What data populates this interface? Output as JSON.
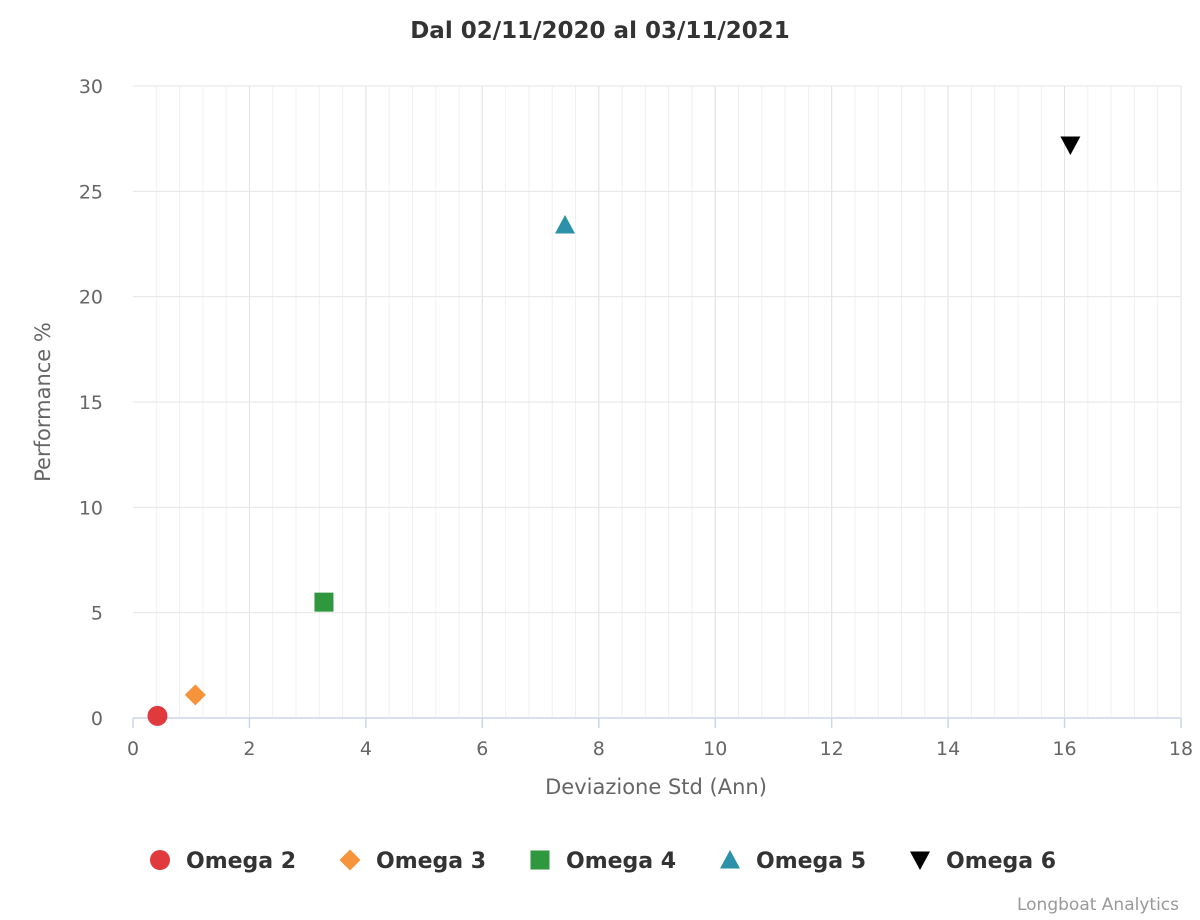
{
  "chart_data": {
    "type": "scatter",
    "title": "Dal 02/11/2020 al 03/11/2021",
    "xlabel": "Deviazione Std (Ann)",
    "ylabel": "Performance %",
    "xlim": [
      0,
      18
    ],
    "ylim": [
      0,
      30
    ],
    "x_ticks": [
      0,
      2,
      4,
      6,
      8,
      10,
      12,
      14,
      16,
      18
    ],
    "y_ticks": [
      0,
      5,
      10,
      15,
      20,
      25,
      30
    ],
    "x_minor_step": 0.4,
    "grid": true,
    "legend_position": "bottom",
    "series": [
      {
        "name": "Omega 2",
        "marker": "circle",
        "color": "#e0393e",
        "points": [
          {
            "x": 0.42,
            "y": 0.1
          }
        ]
      },
      {
        "name": "Omega 3",
        "marker": "diamond",
        "color": "#f7943b",
        "points": [
          {
            "x": 1.07,
            "y": 1.1
          }
        ]
      },
      {
        "name": "Omega 4",
        "marker": "square",
        "color": "#2f973e",
        "points": [
          {
            "x": 3.28,
            "y": 5.5
          }
        ]
      },
      {
        "name": "Omega 5",
        "marker": "triangle",
        "color": "#2b92aa",
        "points": [
          {
            "x": 7.42,
            "y": 23.4
          }
        ]
      },
      {
        "name": "Omega 6",
        "marker": "triangle-down",
        "color": "#000000",
        "points": [
          {
            "x": 16.1,
            "y": 27.2
          }
        ]
      }
    ]
  },
  "credits": "Longboat Analytics"
}
